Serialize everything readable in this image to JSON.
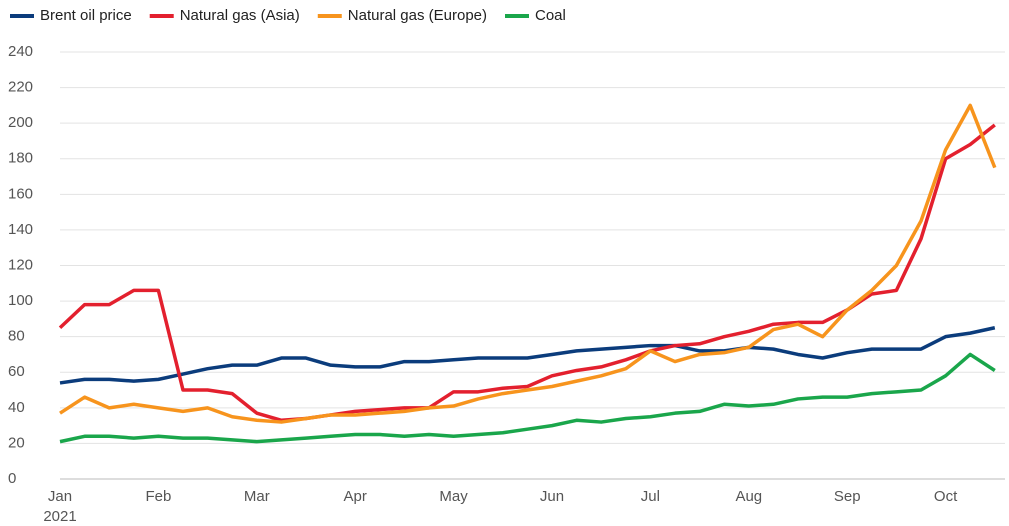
{
  "chart_data": {
    "type": "line",
    "categories": [
      "Jan",
      null,
      null,
      null,
      "Feb",
      null,
      null,
      null,
      "Mar",
      null,
      null,
      null,
      "Apr",
      null,
      null,
      null,
      "May",
      null,
      null,
      null,
      "Jun",
      null,
      null,
      null,
      "Jul",
      null,
      null,
      null,
      "Aug",
      null,
      null,
      null,
      "Sep",
      null,
      null,
      null,
      "Oct",
      null,
      null
    ],
    "x_axis_year": "2021",
    "series": [
      {
        "name": "Brent oil price",
        "color": "#0b3c7c",
        "values": [
          54,
          56,
          56,
          55,
          56,
          59,
          62,
          64,
          64,
          68,
          68,
          64,
          63,
          63,
          66,
          66,
          67,
          68,
          68,
          68,
          70,
          72,
          73,
          74,
          75,
          75,
          72,
          72,
          74,
          73,
          70,
          68,
          71,
          73,
          73,
          73,
          80,
          82,
          85
        ]
      },
      {
        "name": "Natural gas (Asia)",
        "color": "#e3202e",
        "values": [
          85,
          98,
          98,
          106,
          106,
          50,
          50,
          48,
          37,
          33,
          34,
          36,
          38,
          39,
          40,
          40,
          49,
          49,
          51,
          52,
          58,
          61,
          63,
          67,
          72,
          75,
          76,
          80,
          83,
          87,
          88,
          88,
          95,
          104,
          106,
          135,
          180,
          188,
          199
        ]
      },
      {
        "name": "Natural gas (Europe)",
        "color": "#f7941d",
        "values": [
          37,
          46,
          40,
          42,
          40,
          38,
          40,
          35,
          33,
          32,
          34,
          36,
          36,
          37,
          38,
          40,
          41,
          45,
          48,
          50,
          52,
          55,
          58,
          62,
          72,
          66,
          70,
          71,
          74,
          84,
          87,
          80,
          95,
          106,
          120,
          145,
          185,
          210,
          175
        ]
      },
      {
        "name": "Coal",
        "color": "#1aa64b",
        "values": [
          21,
          24,
          24,
          23,
          24,
          23,
          23,
          22,
          21,
          22,
          23,
          24,
          25,
          25,
          24,
          25,
          24,
          25,
          26,
          28,
          30,
          33,
          32,
          34,
          35,
          37,
          38,
          42,
          41,
          42,
          45,
          46,
          46,
          48,
          49,
          50,
          58,
          70,
          61
        ]
      }
    ],
    "ylim": [
      0,
      240
    ],
    "yticks": [
      0,
      20,
      40,
      60,
      80,
      100,
      120,
      140,
      160,
      180,
      200,
      220,
      240
    ],
    "grid": true,
    "legend": "top-left"
  }
}
